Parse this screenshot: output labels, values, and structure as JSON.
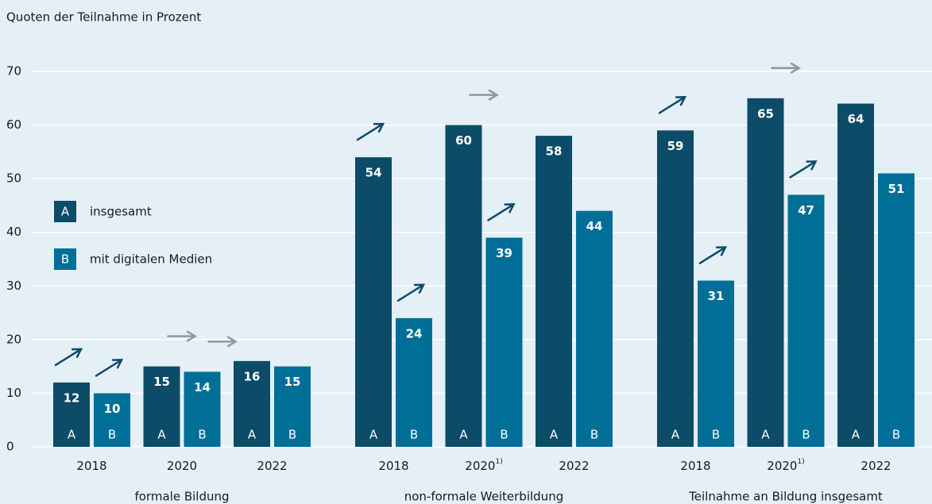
{
  "chart_data": {
    "type": "bar",
    "y_axis_title": "Quoten der Teilnahme in Prozent",
    "groups": [
      "formale Bildung",
      "non-formale Weiterbildung",
      "Teilnahme an Bildung insgesamt"
    ],
    "categories": [
      "2018",
      "2020",
      "2022",
      "2018",
      "2020",
      "2022",
      "2018",
      "2020",
      "2022"
    ],
    "category_footnotes": [
      null,
      null,
      null,
      null,
      "1)",
      null,
      null,
      "1)",
      null
    ],
    "series": [
      {
        "name": "insgesamt",
        "key": "A",
        "color": "#0c4c69",
        "values": [
          12,
          15,
          16,
          54,
          60,
          58,
          59,
          65,
          64
        ],
        "trend": [
          "up",
          "flat",
          null,
          "up",
          "flat",
          null,
          "up",
          "flat",
          null
        ]
      },
      {
        "name": "mit digitalen Medien",
        "key": "B",
        "color": "#006f97",
        "values": [
          10,
          14,
          15,
          24,
          39,
          44,
          31,
          47,
          51
        ],
        "trend": [
          "up",
          "flat",
          null,
          "up",
          "up",
          null,
          "up",
          "up",
          null
        ]
      }
    ],
    "trend_colors": {
      "up": "#0c4c69",
      "flat": "#8a9aa3"
    },
    "ylim": [
      0,
      70
    ],
    "yticks": [
      0,
      10,
      20,
      30,
      40,
      50,
      60,
      70
    ],
    "grid": true
  }
}
